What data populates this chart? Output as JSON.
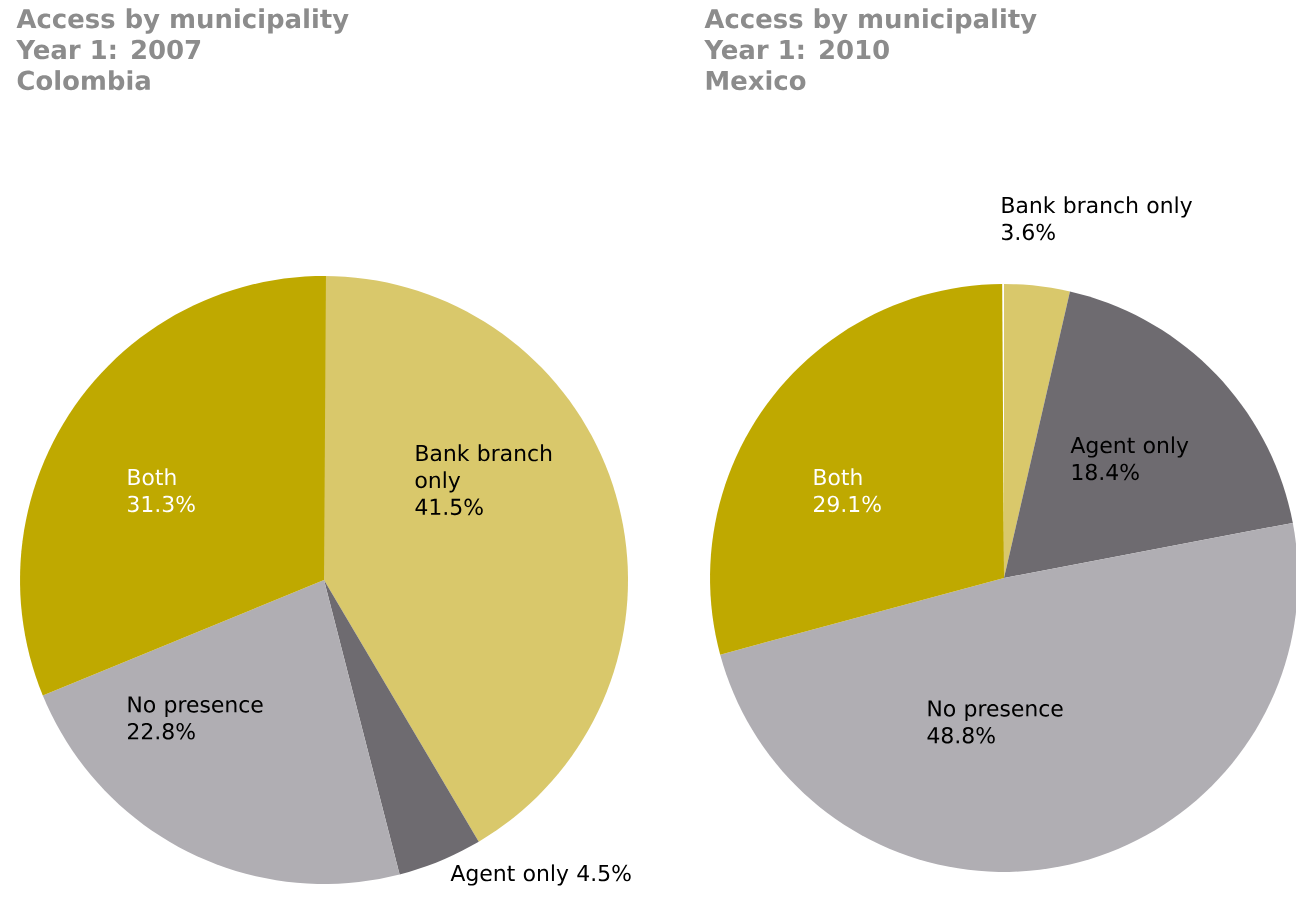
{
  "chart_data": [
    {
      "type": "pie",
      "title": "Access by municipality",
      "subtitle": "Year 1: 2007",
      "annotations": [
        "Colombia"
      ],
      "categories": [
        "Bank branch only",
        "Agent only",
        "No presence",
        "Both"
      ],
      "values": [
        41.5,
        4.5,
        22.8,
        31.3
      ],
      "value_labels": [
        "41.5%",
        "4.5%",
        "22.8%",
        "31.3%"
      ],
      "colors": [
        "#d9c86b",
        "#6e6b70",
        "#b0aeb3",
        "#bfa900"
      ]
    },
    {
      "type": "pie",
      "title": "Access by municipality",
      "subtitle": "Year 1: 2010",
      "annotations": [
        "Mexico"
      ],
      "categories": [
        "Bank branch only",
        "Agent only",
        "No presence",
        "Both"
      ],
      "values": [
        3.6,
        18.4,
        48.8,
        29.1
      ],
      "value_labels": [
        "3.6%",
        "18.4%",
        "48.8%",
        "29.1%"
      ],
      "colors": [
        "#d9c86b",
        "#6e6b70",
        "#b0aeb3",
        "#bfa900"
      ]
    }
  ]
}
